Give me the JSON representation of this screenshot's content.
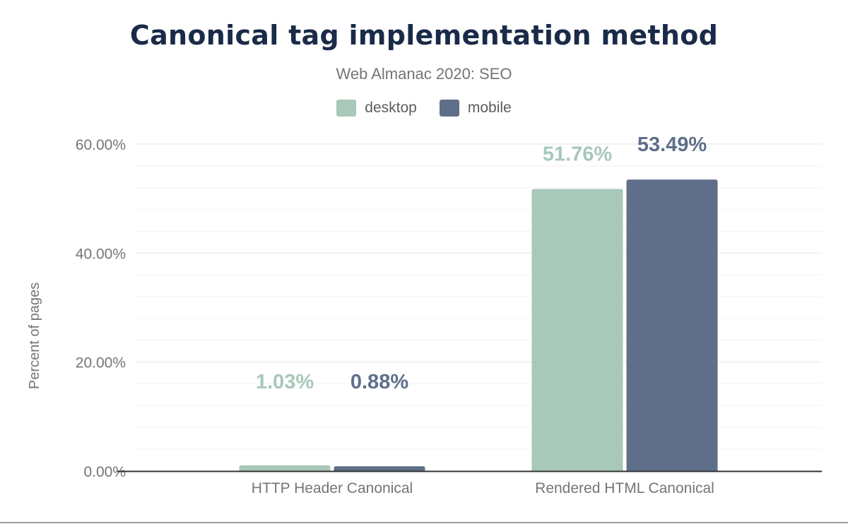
{
  "chart_data": {
    "type": "bar",
    "title": "Canonical tag implementation method",
    "subtitle": "Web Almanac 2020: SEO",
    "xlabel": "",
    "ylabel": "Percent of pages",
    "categories": [
      "HTTP Header Canonical",
      "Rendered HTML Canonical"
    ],
    "series": [
      {
        "name": "desktop",
        "color": "#a8c8b9",
        "values": [
          1.03,
          51.76
        ],
        "labels": [
          "1.03%",
          "51.76%"
        ]
      },
      {
        "name": "mobile",
        "color": "#5f6f8a",
        "values": [
          0.88,
          53.49
        ],
        "labels": [
          "0.88%",
          "53.49%"
        ]
      }
    ],
    "ylim": [
      0,
      60
    ],
    "yticks": [
      0,
      20,
      40,
      60
    ],
    "ytick_labels": [
      "0.00%",
      "20.00%",
      "40.00%",
      "60.00%"
    ],
    "grid": true,
    "legend": "top-center"
  }
}
